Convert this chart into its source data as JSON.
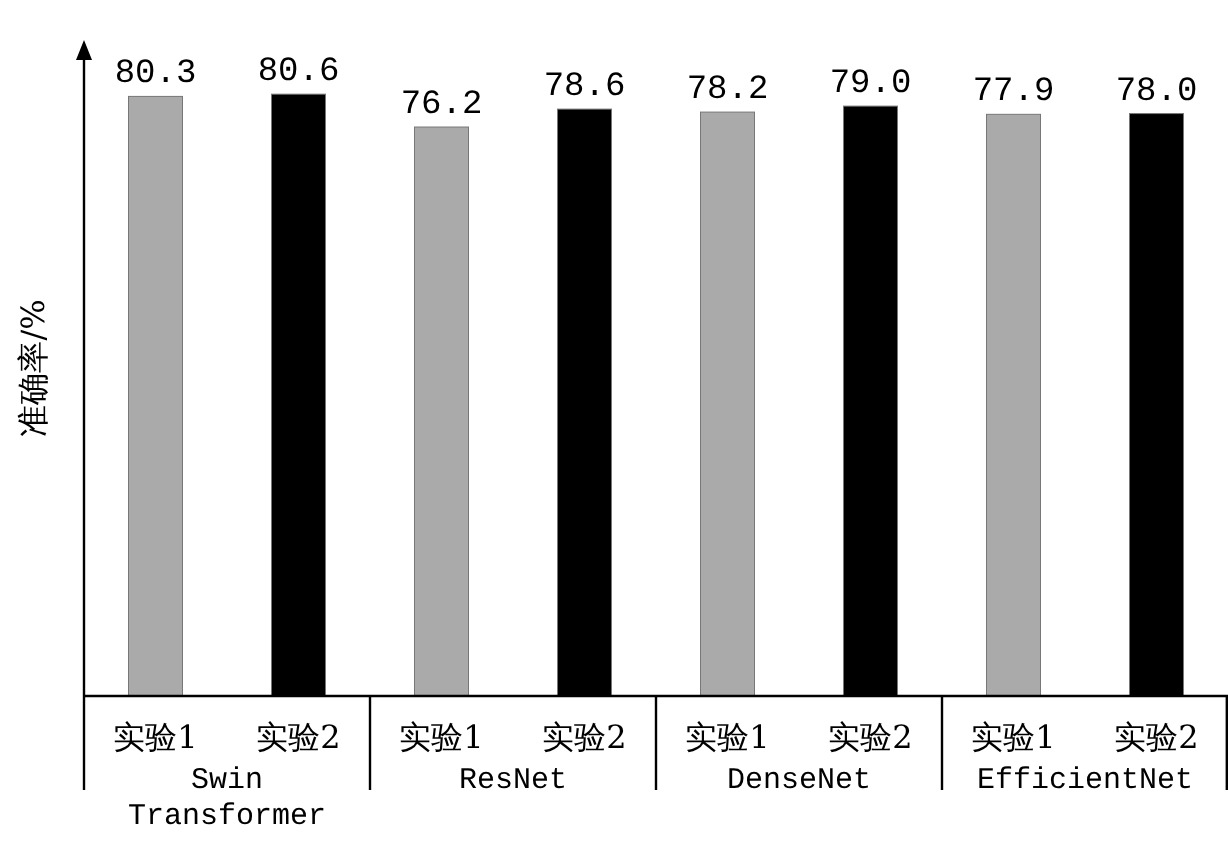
{
  "chart_data": {
    "type": "bar",
    "ylabel": "准确率/%",
    "categories": [
      "Swin Transformer",
      "ResNet",
      "DenseNet",
      "EfficientNet"
    ],
    "series": [
      {
        "name": "实验1",
        "color": "#aaaaaa",
        "values": [
          80.3,
          76.2,
          78.2,
          77.9
        ],
        "value_labels": [
          "80.3",
          "76.2",
          "78.2",
          "77.9"
        ]
      },
      {
        "name": "实验2",
        "color": "#000000",
        "values": [
          80.6,
          78.6,
          79.0,
          78.0
        ],
        "value_labels": [
          "80.6",
          "78.6",
          "79.0",
          "78.0"
        ]
      }
    ],
    "relative": false,
    "legend": false,
    "grid": false
  }
}
